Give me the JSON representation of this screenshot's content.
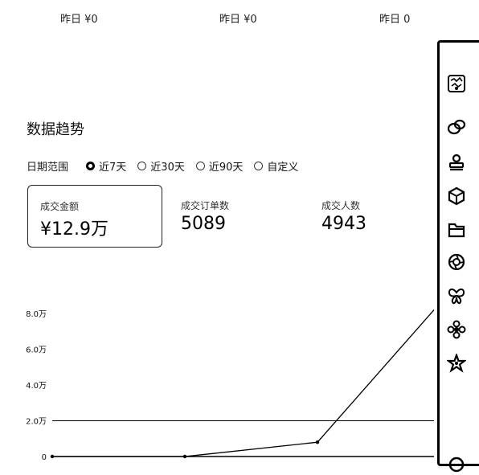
{
  "yesterday": [
    {
      "label": "昨日 ¥0"
    },
    {
      "label": "昨日 ¥0"
    },
    {
      "label": "昨日 0"
    }
  ],
  "section": {
    "title": "数据趋势"
  },
  "date_range": {
    "label": "日期范围",
    "options": [
      "近7天",
      "近30天",
      "近90天",
      "自定义"
    ],
    "selected": "近7天"
  },
  "metrics": [
    {
      "label": "成交金额",
      "value": "¥12.9万",
      "active": true
    },
    {
      "label": "成交订单数",
      "value": "5089",
      "active": false
    },
    {
      "label": "成交人数",
      "value": "4943",
      "active": false
    }
  ],
  "sidebar": {
    "icons": [
      "avatar-icon",
      "chat-bubbles-icon",
      "stamp-icon",
      "cube-icon",
      "folder-icon",
      "aperture-icon",
      "butterfly-icon",
      "flower-icon",
      "star-figure-icon",
      "circle-icon"
    ]
  },
  "chart_data": {
    "type": "line",
    "title": "",
    "xlabel": "",
    "ylabel": "",
    "y_ticks": [
      "0",
      "2.0万",
      "4.0万",
      "6.0万",
      "8.0万"
    ],
    "ylim": [
      0,
      80000
    ],
    "grid": true,
    "series": [
      {
        "values": [
          0,
          0,
          8000,
          82000
        ]
      }
    ],
    "x_positions_note": "",
    "legend": "none"
  },
  "colors": {
    "text": "#111111",
    "border": "#222222",
    "line": "#000000"
  }
}
